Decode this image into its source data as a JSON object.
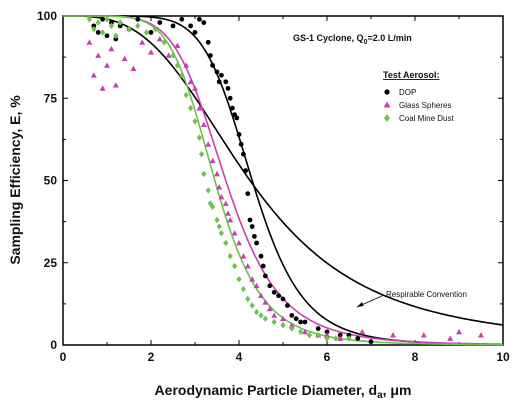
{
  "chart_data": {
    "type": "scatter",
    "title": "GS-1 Cyclone, Q",
    "title_sub": "0",
    "title_tail": "=2.0 L/min",
    "xlabel": "Aerodynamic Particle Diameter, d",
    "xlabel_sub": "a",
    "xlabel_unit": ", μm",
    "ylabel": "Sampling Efficiency, E, %",
    "xlim": [
      0,
      10
    ],
    "ylim": [
      0,
      100
    ],
    "xticks": [
      0,
      2,
      4,
      6,
      8,
      10
    ],
    "yticks": [
      0,
      25,
      50,
      75,
      100
    ],
    "grid": false,
    "legend_title": "Test Aerosol:",
    "legend_position": "top-right",
    "annotation": "Respirable Convention",
    "series": [
      {
        "name": "DOP",
        "marker": "circle",
        "color": "#000000",
        "points": [
          [
            0.7,
            97
          ],
          [
            0.8,
            95
          ],
          [
            0.9,
            99
          ],
          [
            1.0,
            94
          ],
          [
            1.1,
            98
          ],
          [
            1.2,
            93
          ],
          [
            1.3,
            97
          ],
          [
            1.5,
            96
          ],
          [
            1.7,
            99
          ],
          [
            2.0,
            95
          ],
          [
            2.2,
            98
          ],
          [
            2.5,
            97
          ],
          [
            2.7,
            99
          ],
          [
            2.9,
            97
          ],
          [
            3.0,
            95
          ],
          [
            3.1,
            99
          ],
          [
            3.2,
            98
          ],
          [
            3.3,
            92
          ],
          [
            3.35,
            88
          ],
          [
            3.4,
            85
          ],
          [
            3.5,
            83
          ],
          [
            3.55,
            80
          ],
          [
            3.6,
            82
          ],
          [
            3.7,
            80
          ],
          [
            3.75,
            78
          ],
          [
            3.8,
            75
          ],
          [
            3.85,
            72
          ],
          [
            3.9,
            70
          ],
          [
            3.95,
            69
          ],
          [
            4.0,
            64
          ],
          [
            4.05,
            61
          ],
          [
            4.1,
            58
          ],
          [
            4.15,
            53
          ],
          [
            4.2,
            46
          ],
          [
            4.25,
            38
          ],
          [
            4.3,
            36
          ],
          [
            4.35,
            33
          ],
          [
            4.4,
            31
          ],
          [
            4.5,
            27
          ],
          [
            4.55,
            24
          ],
          [
            4.6,
            21
          ],
          [
            4.7,
            18
          ],
          [
            4.8,
            16
          ],
          [
            4.9,
            15
          ],
          [
            5.0,
            14
          ],
          [
            5.1,
            12
          ],
          [
            5.2,
            9
          ],
          [
            5.3,
            8
          ],
          [
            5.4,
            7
          ],
          [
            5.5,
            7
          ],
          [
            5.8,
            5
          ],
          [
            6.0,
            4
          ],
          [
            6.3,
            3
          ],
          [
            6.5,
            3
          ],
          [
            6.7,
            2
          ],
          [
            7.0,
            1
          ]
        ]
      },
      {
        "name": "Glass Spheres",
        "marker": "triangle",
        "color": "#c93fb0",
        "points": [
          [
            0.6,
            92
          ],
          [
            0.7,
            82
          ],
          [
            0.8,
            88
          ],
          [
            0.9,
            78
          ],
          [
            1.0,
            85
          ],
          [
            1.1,
            90
          ],
          [
            1.2,
            79
          ],
          [
            1.4,
            87
          ],
          [
            1.6,
            84
          ],
          [
            1.8,
            92
          ],
          [
            2.0,
            89
          ],
          [
            2.2,
            93
          ],
          [
            2.4,
            88
          ],
          [
            2.6,
            91
          ],
          [
            2.8,
            85
          ],
          [
            2.9,
            80
          ],
          [
            3.0,
            78
          ],
          [
            3.1,
            72
          ],
          [
            3.2,
            67
          ],
          [
            3.3,
            61
          ],
          [
            3.4,
            56
          ],
          [
            3.5,
            52
          ],
          [
            3.55,
            48
          ],
          [
            3.6,
            45
          ],
          [
            3.7,
            43
          ],
          [
            3.75,
            40
          ],
          [
            3.8,
            38
          ],
          [
            3.9,
            34
          ],
          [
            4.0,
            31
          ],
          [
            4.1,
            27
          ],
          [
            4.2,
            24
          ],
          [
            4.3,
            20
          ],
          [
            4.4,
            18
          ],
          [
            4.5,
            15
          ],
          [
            4.6,
            13
          ],
          [
            4.7,
            11
          ],
          [
            4.8,
            9
          ],
          [
            5.0,
            8
          ],
          [
            5.2,
            6
          ],
          [
            5.5,
            4
          ],
          [
            5.8,
            3
          ],
          [
            6.0,
            3
          ],
          [
            6.3,
            2
          ],
          [
            6.8,
            4
          ],
          [
            7.5,
            3
          ],
          [
            8.2,
            3
          ],
          [
            8.8,
            2
          ],
          [
            9.0,
            4
          ],
          [
            9.5,
            3
          ]
        ]
      },
      {
        "name": "Coal Mine Dust",
        "marker": "diamond",
        "color": "#6cc24a",
        "points": [
          [
            0.6,
            99
          ],
          [
            0.7,
            96
          ],
          [
            0.8,
            98
          ],
          [
            0.9,
            95
          ],
          [
            1.0,
            99
          ],
          [
            1.1,
            97
          ],
          [
            1.2,
            94
          ],
          [
            1.3,
            98
          ],
          [
            1.5,
            96
          ],
          [
            1.7,
            97
          ],
          [
            1.9,
            95
          ],
          [
            2.1,
            96
          ],
          [
            2.3,
            92
          ],
          [
            2.5,
            88
          ],
          [
            2.6,
            85
          ],
          [
            2.7,
            82
          ],
          [
            2.8,
            76
          ],
          [
            2.9,
            72
          ],
          [
            3.0,
            68
          ],
          [
            3.1,
            63
          ],
          [
            3.15,
            58
          ],
          [
            3.2,
            52
          ],
          [
            3.3,
            47
          ],
          [
            3.35,
            43
          ],
          [
            3.4,
            42
          ],
          [
            3.5,
            38
          ],
          [
            3.55,
            36
          ],
          [
            3.6,
            34
          ],
          [
            3.7,
            31
          ],
          [
            3.8,
            27
          ],
          [
            3.9,
            24
          ],
          [
            4.0,
            20
          ],
          [
            4.1,
            17
          ],
          [
            4.2,
            14
          ],
          [
            4.3,
            12
          ],
          [
            4.4,
            10
          ],
          [
            4.5,
            9
          ],
          [
            4.6,
            8
          ],
          [
            4.8,
            7
          ],
          [
            5.0,
            6
          ],
          [
            5.2,
            5
          ],
          [
            5.4,
            4
          ],
          [
            5.6,
            3
          ],
          [
            5.8,
            3
          ],
          [
            6.0,
            2
          ],
          [
            6.2,
            2
          ],
          [
            6.5,
            2
          ]
        ]
      }
    ]
  }
}
